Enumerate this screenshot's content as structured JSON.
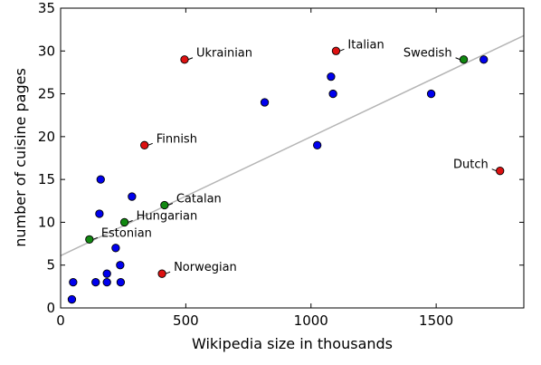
{
  "chart_data": {
    "type": "scatter",
    "xlabel": "Wikipedia size in thousands",
    "ylabel": "number of cuisine pages",
    "xlim": [
      0,
      1850
    ],
    "ylim": [
      0,
      35
    ],
    "x_ticks": [
      0,
      500,
      1000,
      1500
    ],
    "y_ticks": [
      0,
      5,
      10,
      15,
      20,
      25,
      30,
      35
    ],
    "grid": false,
    "legend": "none",
    "colors": {
      "blue": "#0000ee",
      "red": "#dd1111",
      "green": "#118811",
      "trend": "#b5b5b5"
    },
    "trend_line": {
      "from": [
        0,
        6.1
      ],
      "to": [
        1850,
        31.8
      ]
    },
    "points": [
      {
        "x": 45,
        "y": 1,
        "color": "blue"
      },
      {
        "x": 50,
        "y": 3,
        "color": "blue"
      },
      {
        "x": 140,
        "y": 3,
        "color": "blue"
      },
      {
        "x": 185,
        "y": 3,
        "color": "blue"
      },
      {
        "x": 240,
        "y": 3,
        "color": "blue"
      },
      {
        "x": 185,
        "y": 4,
        "color": "blue"
      },
      {
        "x": 238,
        "y": 5,
        "color": "blue"
      },
      {
        "x": 220,
        "y": 7,
        "color": "blue"
      },
      {
        "x": 155,
        "y": 11,
        "color": "blue"
      },
      {
        "x": 160,
        "y": 15,
        "color": "blue"
      },
      {
        "x": 285,
        "y": 13,
        "color": "blue"
      },
      {
        "x": 815,
        "y": 24,
        "color": "blue"
      },
      {
        "x": 1025,
        "y": 19,
        "color": "blue"
      },
      {
        "x": 1080,
        "y": 27,
        "color": "blue"
      },
      {
        "x": 1088,
        "y": 25,
        "color": "blue"
      },
      {
        "x": 1480,
        "y": 25,
        "color": "blue"
      },
      {
        "x": 1690,
        "y": 29,
        "color": "blue"
      },
      {
        "x": 495,
        "y": 29,
        "color": "red",
        "label": "Ukrainian",
        "label_side": "right"
      },
      {
        "x": 1100,
        "y": 30,
        "color": "red",
        "label": "Italian",
        "label_side": "right"
      },
      {
        "x": 335,
        "y": 19,
        "color": "red",
        "label": "Finnish",
        "label_side": "right"
      },
      {
        "x": 1755,
        "y": 16,
        "color": "red",
        "label": "Dutch",
        "label_side": "left"
      },
      {
        "x": 405,
        "y": 4,
        "color": "red",
        "label": "Norwegian",
        "label_side": "right"
      },
      {
        "x": 1610,
        "y": 29,
        "color": "green",
        "label": "Swedish",
        "label_side": "left"
      },
      {
        "x": 415,
        "y": 12,
        "color": "green",
        "label": "Catalan",
        "label_side": "right"
      },
      {
        "x": 255,
        "y": 10,
        "color": "green",
        "label": "Hungarian",
        "label_side": "right"
      },
      {
        "x": 115,
        "y": 8,
        "color": "green",
        "label": "Estonian",
        "label_side": "right"
      }
    ]
  }
}
